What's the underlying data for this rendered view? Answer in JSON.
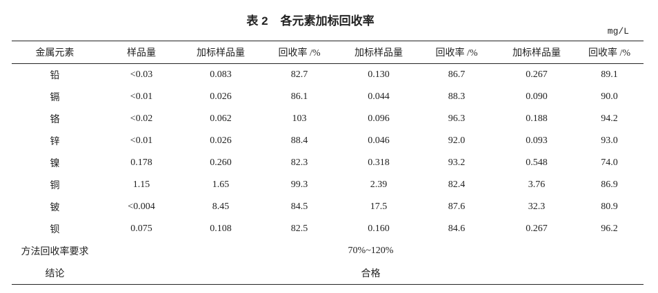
{
  "title": {
    "label": "表 2",
    "text": "各元素加标回收率"
  },
  "unit": "mg/L",
  "table": {
    "headers": [
      "金属元素",
      "样品量",
      "加标样品量",
      "回收率 /%",
      "加标样品量",
      "回收率 /%",
      "加标样品量",
      "回收率 /%"
    ],
    "rows": [
      [
        "铅",
        "<0.03",
        "0.083",
        "82.7",
        "0.130",
        "86.7",
        "0.267",
        "89.1"
      ],
      [
        "镉",
        "<0.01",
        "0.026",
        "86.1",
        "0.044",
        "88.3",
        "0.090",
        "90.0"
      ],
      [
        "铬",
        "<0.02",
        "0.062",
        "103",
        "0.096",
        "96.3",
        "0.188",
        "94.2"
      ],
      [
        "锌",
        "<0.01",
        "0.026",
        "88.4",
        "0.046",
        "92.0",
        "0.093",
        "93.0"
      ],
      [
        "镍",
        "0.178",
        "0.260",
        "82.3",
        "0.318",
        "93.2",
        "0.548",
        "74.0"
      ],
      [
        "铜",
        "1.15",
        "1.65",
        "99.3",
        "2.39",
        "82.4",
        "3.76",
        "86.9"
      ],
      [
        "铍",
        "<0.004",
        "8.45",
        "84.5",
        "17.5",
        "87.6",
        "32.3",
        "80.9"
      ],
      [
        "钡",
        "0.075",
        "0.108",
        "82.5",
        "0.160",
        "84.6",
        "0.267",
        "96.2"
      ]
    ],
    "requirement": {
      "label": "方法回收率要求",
      "value": "70%~120%"
    },
    "conclusion": {
      "label": "结论",
      "value": "合格"
    }
  }
}
